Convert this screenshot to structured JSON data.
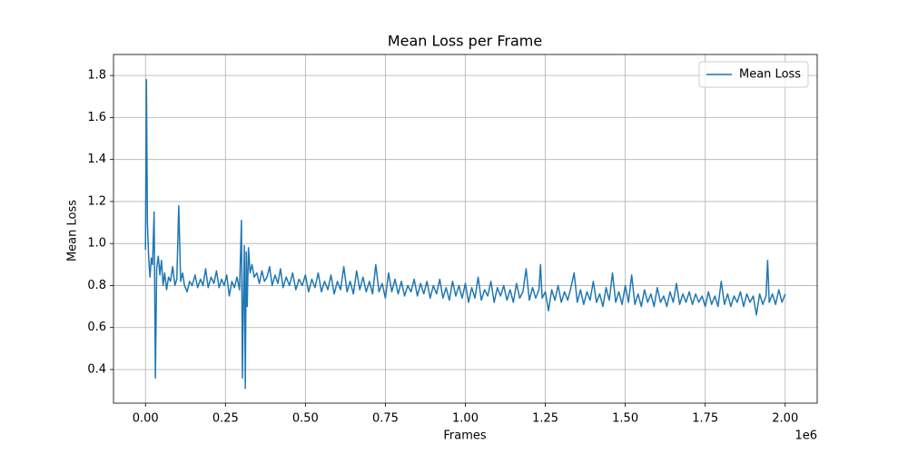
{
  "chart_data": {
    "type": "line",
    "title": "Mean Loss per Frame",
    "x_label": "Frames",
    "y_label": "Mean Loss",
    "x_offset_label": "1e6",
    "x": [
      0.0,
      0.003,
      0.006,
      0.01,
      0.014,
      0.018,
      0.022,
      0.027,
      0.031,
      0.035,
      0.04,
      0.045,
      0.05,
      0.055,
      0.06,
      0.066,
      0.072,
      0.078,
      0.085,
      0.092,
      0.098,
      0.104,
      0.11,
      0.116,
      0.122,
      0.13,
      0.138,
      0.146,
      0.155,
      0.163,
      0.172,
      0.18,
      0.188,
      0.196,
      0.205,
      0.214,
      0.222,
      0.23,
      0.238,
      0.246,
      0.254,
      0.262,
      0.27,
      0.278,
      0.286,
      0.294,
      0.3,
      0.303,
      0.306,
      0.309,
      0.312,
      0.315,
      0.318,
      0.322,
      0.327,
      0.333,
      0.34,
      0.348,
      0.356,
      0.364,
      0.372,
      0.38,
      0.388,
      0.396,
      0.405,
      0.414,
      0.422,
      0.43,
      0.44,
      0.45,
      0.46,
      0.47,
      0.48,
      0.49,
      0.5,
      0.51,
      0.52,
      0.53,
      0.54,
      0.55,
      0.56,
      0.57,
      0.58,
      0.59,
      0.6,
      0.61,
      0.62,
      0.63,
      0.64,
      0.65,
      0.66,
      0.67,
      0.68,
      0.69,
      0.7,
      0.71,
      0.72,
      0.73,
      0.74,
      0.75,
      0.76,
      0.77,
      0.78,
      0.79,
      0.8,
      0.81,
      0.82,
      0.83,
      0.84,
      0.85,
      0.86,
      0.87,
      0.88,
      0.89,
      0.9,
      0.91,
      0.92,
      0.93,
      0.94,
      0.95,
      0.96,
      0.97,
      0.98,
      0.99,
      1.0,
      1.01,
      1.02,
      1.03,
      1.04,
      1.05,
      1.06,
      1.07,
      1.08,
      1.09,
      1.1,
      1.11,
      1.12,
      1.13,
      1.14,
      1.15,
      1.16,
      1.17,
      1.18,
      1.19,
      1.2,
      1.21,
      1.22,
      1.23,
      1.235,
      1.24,
      1.25,
      1.26,
      1.27,
      1.28,
      1.29,
      1.3,
      1.31,
      1.32,
      1.33,
      1.34,
      1.35,
      1.36,
      1.37,
      1.38,
      1.39,
      1.4,
      1.41,
      1.42,
      1.43,
      1.44,
      1.45,
      1.46,
      1.47,
      1.48,
      1.49,
      1.5,
      1.51,
      1.52,
      1.53,
      1.54,
      1.55,
      1.56,
      1.57,
      1.58,
      1.59,
      1.6,
      1.61,
      1.62,
      1.63,
      1.64,
      1.65,
      1.66,
      1.67,
      1.68,
      1.69,
      1.7,
      1.71,
      1.72,
      1.73,
      1.74,
      1.75,
      1.76,
      1.77,
      1.78,
      1.79,
      1.8,
      1.81,
      1.82,
      1.83,
      1.84,
      1.85,
      1.86,
      1.87,
      1.88,
      1.89,
      1.9,
      1.91,
      1.92,
      1.93,
      1.94,
      1.945,
      1.95,
      1.96,
      1.97,
      1.98,
      1.99,
      2.0
    ],
    "series": [
      {
        "name": "Mean Loss",
        "color": "#1f77b4",
        "values": [
          0.97,
          1.78,
          1.1,
          0.93,
          0.84,
          0.93,
          0.9,
          1.15,
          0.36,
          0.88,
          0.94,
          0.85,
          0.92,
          0.8,
          0.86,
          0.78,
          0.84,
          0.82,
          0.89,
          0.8,
          0.83,
          1.18,
          0.82,
          0.86,
          0.8,
          0.77,
          0.82,
          0.8,
          0.85,
          0.79,
          0.83,
          0.8,
          0.88,
          0.79,
          0.84,
          0.81,
          0.87,
          0.79,
          0.83,
          0.8,
          0.85,
          0.75,
          0.82,
          0.79,
          0.84,
          0.78,
          1.11,
          0.36,
          0.72,
          0.99,
          0.31,
          0.96,
          0.7,
          0.98,
          0.86,
          0.9,
          0.84,
          0.86,
          0.81,
          0.87,
          0.82,
          0.84,
          0.89,
          0.8,
          0.85,
          0.81,
          0.88,
          0.79,
          0.84,
          0.8,
          0.86,
          0.78,
          0.83,
          0.8,
          0.85,
          0.77,
          0.83,
          0.79,
          0.86,
          0.77,
          0.82,
          0.78,
          0.85,
          0.76,
          0.82,
          0.78,
          0.89,
          0.77,
          0.82,
          0.76,
          0.87,
          0.78,
          0.84,
          0.77,
          0.82,
          0.76,
          0.9,
          0.77,
          0.81,
          0.74,
          0.86,
          0.77,
          0.83,
          0.76,
          0.82,
          0.75,
          0.8,
          0.77,
          0.83,
          0.75,
          0.81,
          0.76,
          0.82,
          0.74,
          0.8,
          0.76,
          0.83,
          0.74,
          0.79,
          0.73,
          0.82,
          0.75,
          0.8,
          0.74,
          0.81,
          0.72,
          0.79,
          0.74,
          0.84,
          0.73,
          0.78,
          0.75,
          0.82,
          0.72,
          0.79,
          0.75,
          0.8,
          0.73,
          0.78,
          0.72,
          0.81,
          0.74,
          0.77,
          0.88,
          0.73,
          0.79,
          0.74,
          0.78,
          0.9,
          0.74,
          0.77,
          0.68,
          0.78,
          0.73,
          0.8,
          0.72,
          0.77,
          0.73,
          0.79,
          0.86,
          0.72,
          0.78,
          0.71,
          0.77,
          0.73,
          0.82,
          0.72,
          0.76,
          0.7,
          0.79,
          0.73,
          0.86,
          0.72,
          0.77,
          0.71,
          0.8,
          0.72,
          0.85,
          0.71,
          0.76,
          0.7,
          0.78,
          0.72,
          0.76,
          0.7,
          0.79,
          0.72,
          0.75,
          0.7,
          0.77,
          0.72,
          0.81,
          0.71,
          0.76,
          0.72,
          0.77,
          0.71,
          0.76,
          0.72,
          0.75,
          0.7,
          0.77,
          0.71,
          0.75,
          0.7,
          0.82,
          0.71,
          0.76,
          0.7,
          0.75,
          0.72,
          0.77,
          0.7,
          0.76,
          0.72,
          0.75,
          0.66,
          0.76,
          0.71,
          0.75,
          0.92,
          0.72,
          0.76,
          0.71,
          0.78,
          0.72,
          0.76
        ]
      }
    ],
    "xlim": [
      -0.1,
      2.1
    ],
    "ylim": [
      0.24,
      1.9
    ],
    "xticks": [
      {
        "value": 0,
        "label": "0.00"
      },
      {
        "value": 0.25,
        "label": "0.25"
      },
      {
        "value": 0.5,
        "label": "0.50"
      },
      {
        "value": 0.75,
        "label": "0.75"
      },
      {
        "value": 1,
        "label": "1.00"
      },
      {
        "value": 1.25,
        "label": "1.25"
      },
      {
        "value": 1.5,
        "label": "1.50"
      },
      {
        "value": 1.75,
        "label": "1.75"
      },
      {
        "value": 2,
        "label": "2.00"
      }
    ],
    "yticks": [
      0.4,
      0.6,
      0.8,
      {
        "value": 1,
        "label": "1.0"
      },
      1.2,
      1.4,
      1.6,
      1.8
    ],
    "grid": true,
    "legend": "upper right"
  }
}
